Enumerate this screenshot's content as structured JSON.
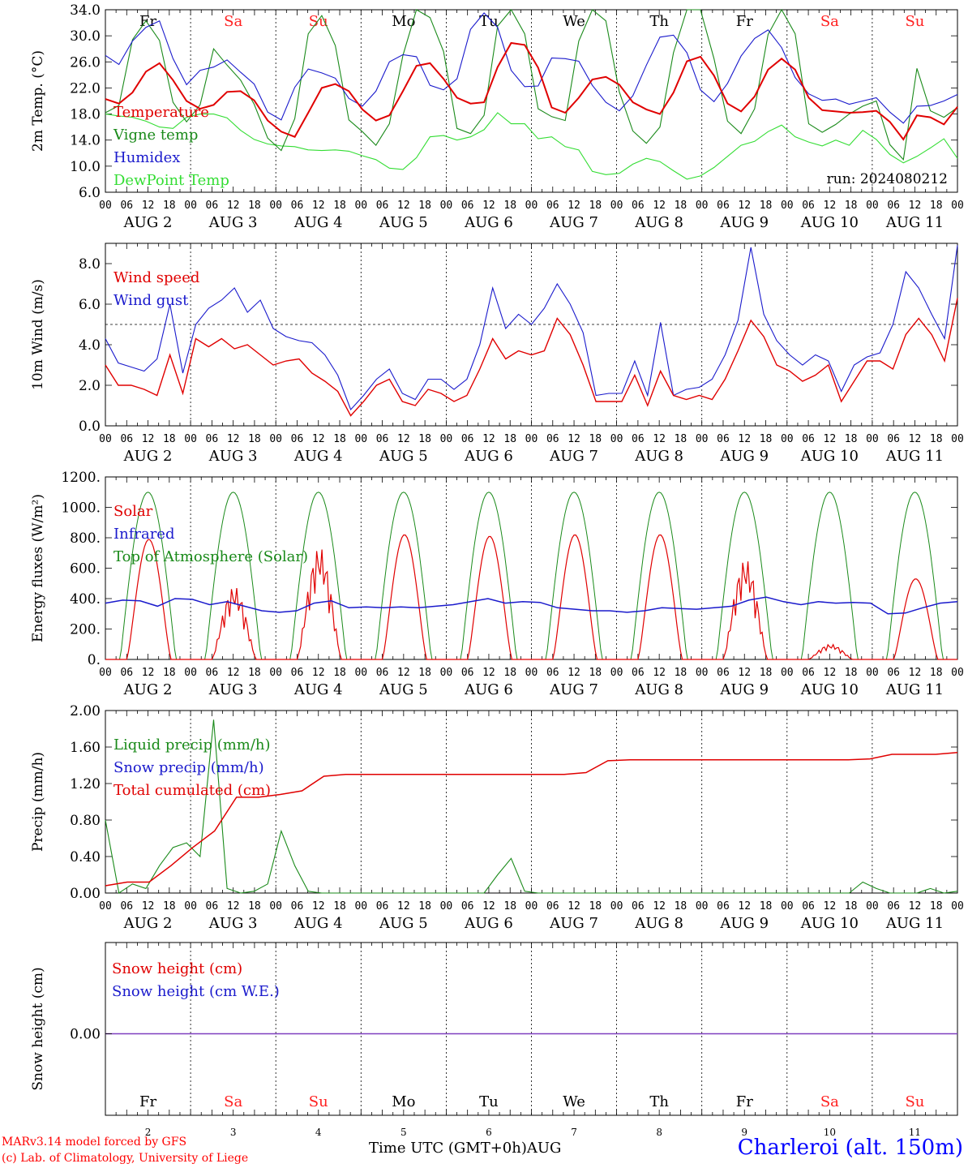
{
  "footer": {
    "credit_line1": "MARv3.14 model forced by GFS",
    "credit_line2": "(c) Lab. of Climatology, University of Liege",
    "x_title": "Time UTC (GMT+0h)AUG",
    "station": "Charleroi (alt. 150m)"
  },
  "colors": {
    "red": "#e00000",
    "green": "#1a8a1a",
    "blue": "#1a1acc",
    "lightgreen": "#33dd33",
    "purple": "#7f3fbf",
    "weekend": "#ff2020"
  },
  "days": [
    {
      "name": "Fr",
      "date": "2",
      "weekend": false
    },
    {
      "name": "Sa",
      "date": "3",
      "weekend": true
    },
    {
      "name": "Su",
      "date": "4",
      "weekend": true
    },
    {
      "name": "Mo",
      "date": "5",
      "weekend": false
    },
    {
      "name": "Tu",
      "date": "6",
      "weekend": false
    },
    {
      "name": "We",
      "date": "7",
      "weekend": false
    },
    {
      "name": "Th",
      "date": "8",
      "weekend": false
    },
    {
      "name": "Fr",
      "date": "9",
      "weekend": false
    },
    {
      "name": "Sa",
      "date": "10",
      "weekend": true
    },
    {
      "name": "Su",
      "date": "11",
      "weekend": true
    }
  ],
  "hour_ticks": [
    "00",
    "06",
    "12",
    "18"
  ],
  "month_label": "AUG",
  "chart_data": [
    {
      "type": "line",
      "ylabel": "2m Temp. (°C)",
      "ylim": [
        6,
        34
      ],
      "yticks": [
        "6.0",
        "10.0",
        "14.0",
        "18.0",
        "22.0",
        "26.0",
        "30.0",
        "34.0"
      ],
      "annotation": "run: 2024080212",
      "series": [
        {
          "name": "Temperature",
          "color": "red",
          "values": [
            20.3,
            19.6,
            21.3,
            24.5,
            25.8,
            23.2,
            20,
            18.8,
            19.4,
            21.4,
            21.5,
            20.1,
            17,
            15.3,
            14.5,
            18.2,
            22,
            22.6,
            21.5,
            18.7,
            17,
            17.8,
            21.5,
            25.4,
            25.8,
            23.4,
            20.5,
            19.6,
            19.8,
            25.2,
            28.9,
            28.6,
            25.1,
            19,
            18.2,
            20.5,
            23.3,
            23.7,
            22.5,
            19.8,
            18.7,
            18,
            21.3,
            26.1,
            26.8,
            23.9,
            19.6,
            18.4,
            20.7,
            24.8,
            26.5,
            24.8,
            20.5,
            18.6,
            18.4,
            18.2,
            18.3,
            18.5,
            16.8,
            14.1,
            17.8,
            17.5,
            16.4,
            19.1
          ]
        },
        {
          "name": "Vigne temp",
          "color": "green",
          "values": [
            18.2,
            19.3,
            29.4,
            32.3,
            29.3,
            19.8,
            16.8,
            19.4,
            28,
            25.5,
            23.2,
            19.5,
            14.3,
            12.4,
            17.3,
            30.3,
            33.1,
            28.5,
            17.1,
            15.3,
            13.2,
            16.5,
            27,
            34,
            32.8,
            27.6,
            15.8,
            15,
            17.8,
            31.5,
            34,
            30.3,
            18.8,
            17.6,
            17,
            29.2,
            34,
            32.3,
            21.4,
            15.4,
            13.5,
            16,
            27.4,
            34,
            34,
            26.5,
            16.9,
            15,
            18.8,
            30.2,
            34,
            30.3,
            16.5,
            15.2,
            16.4,
            18,
            19.2,
            20,
            13.3,
            11,
            25,
            18.5,
            17.5,
            19
          ]
        },
        {
          "name": "Humidex",
          "color": "blue",
          "values": [
            27,
            25.6,
            29.2,
            31.3,
            32.3,
            26.5,
            22.5,
            24.7,
            25.2,
            26.3,
            24.4,
            22.6,
            18.3,
            17.1,
            22.1,
            24.9,
            24.3,
            23.5,
            20.4,
            19.2,
            21.5,
            26,
            27.1,
            26.8,
            22.4,
            21.7,
            23.4,
            31,
            33.5,
            31.3,
            24.7,
            22.2,
            22.3,
            26.6,
            26.5,
            26.1,
            22.4,
            19.8,
            18.5,
            20.8,
            25.5,
            29.8,
            30.1,
            27.4,
            21.7,
            19.9,
            22.7,
            26.9,
            29.6,
            30.9,
            28.2,
            23.6,
            21.1,
            20.1,
            20.3,
            19.5,
            20,
            20.5,
            18.3,
            16.6,
            19.2,
            19.3,
            20,
            21
          ]
        },
        {
          "name": "DewPoint Temp",
          "color": "lightgreen",
          "values": [
            18,
            17.7,
            17.5,
            16.9,
            16,
            15.8,
            17.5,
            18,
            18,
            17.4,
            15.5,
            14.1,
            13.4,
            13.1,
            13,
            12.5,
            12.4,
            12.5,
            12.3,
            11.6,
            11,
            9.7,
            9.5,
            11.3,
            14.5,
            14.7,
            14,
            14.5,
            15.6,
            18.2,
            16.5,
            16.5,
            14.2,
            14.5,
            13,
            12.5,
            9.2,
            8.7,
            8.9,
            10.3,
            11.2,
            10.7,
            9.3,
            8,
            8.5,
            9.8,
            11.5,
            13.2,
            13.8,
            15.3,
            16.3,
            14.5,
            13.7,
            13.1,
            14,
            13.2,
            15.5,
            14.1,
            11.8,
            10.5,
            11.5,
            12.8,
            14.2,
            11.2
          ]
        }
      ]
    },
    {
      "type": "line",
      "ylabel": "10m Wind (m/s)",
      "ylim": [
        0,
        9
      ],
      "yticks": [
        "0.0",
        "2.0",
        "4.0",
        "6.0",
        "8.0"
      ],
      "reference_line": 5,
      "series": [
        {
          "name": "Wind speed",
          "color": "red",
          "values": [
            3,
            2,
            2,
            1.8,
            1.5,
            3.5,
            1.6,
            4.3,
            3.9,
            4.3,
            3.8,
            4,
            3.5,
            3,
            3.2,
            3.3,
            2.6,
            2.2,
            1.7,
            0.5,
            1.2,
            2,
            2.3,
            1.2,
            1,
            1.8,
            1.6,
            1.2,
            1.5,
            2.8,
            4.3,
            3.3,
            3.7,
            3.5,
            3.7,
            5.3,
            4.5,
            3,
            1.2,
            1.2,
            1.2,
            2.5,
            1,
            2.7,
            1.5,
            1.3,
            1.5,
            1.3,
            2.3,
            3.7,
            5.2,
            4.4,
            3,
            2.7,
            2.2,
            2.5,
            3,
            1.2,
            2.2,
            3.2,
            3.2,
            2.8,
            4.5,
            5.3,
            4.5,
            3.2,
            6.3
          ]
        },
        {
          "name": "Wind gust",
          "color": "blue",
          "values": [
            4.3,
            3.1,
            2.9,
            2.7,
            3.3,
            6,
            2.6,
            5,
            5.8,
            6.2,
            6.8,
            5.6,
            6.2,
            4.8,
            4.4,
            4.2,
            4.1,
            3.5,
            2.5,
            0.8,
            1.5,
            2.3,
            2.8,
            1.6,
            1.3,
            2.3,
            2.3,
            1.8,
            2.3,
            4,
            6.8,
            4.8,
            5.5,
            5,
            5.8,
            7,
            6,
            4.6,
            1.5,
            1.6,
            1.6,
            3.2,
            1.5,
            5.1,
            1.5,
            1.8,
            1.9,
            2.3,
            3.5,
            5.2,
            8.8,
            5.5,
            4.2,
            3.5,
            3,
            3.5,
            3.2,
            1.7,
            3,
            3.4,
            3.6,
            5,
            7.6,
            6.8,
            5.5,
            4.3,
            8.9
          ]
        }
      ]
    },
    {
      "type": "line",
      "ylabel": "Energy fluxes (W/m²)",
      "ylim": [
        0,
        1200
      ],
      "yticks": [
        "0.",
        "200.",
        "400.",
        "600.",
        "800.",
        "1000.",
        "1200."
      ],
      "series": [
        {
          "name": "Solar",
          "color": "red",
          "peaks": [
            790,
            480,
            740,
            820,
            810,
            820,
            820,
            660,
            100,
            530
          ],
          "label_hint": "daily solar"
        },
        {
          "name": "Infrared",
          "color": "blue",
          "values": [
            370,
            390,
            385,
            350,
            400,
            395,
            360,
            380,
            350,
            320,
            310,
            320,
            370,
            385,
            340,
            345,
            340,
            345,
            340,
            350,
            360,
            380,
            400,
            370,
            380,
            375,
            340,
            330,
            320,
            320,
            310,
            320,
            340,
            335,
            330,
            340,
            350,
            390,
            410,
            380,
            360,
            380,
            370,
            375,
            370,
            300,
            305,
            340,
            370,
            380
          ]
        },
        {
          "name": "Top of Atmosphere (Solar)",
          "color": "green",
          "peak": 1100
        }
      ]
    },
    {
      "type": "line",
      "ylabel": "Precip (mm/h)",
      "ylim": [
        0,
        2
      ],
      "yticks": [
        "0.00",
        "0.40",
        "0.80",
        "1.20",
        "1.60",
        "2.00"
      ],
      "series": [
        {
          "name": "Liquid precip (mm/h)",
          "color": "green",
          "values": [
            0.8,
            0,
            0.1,
            0.05,
            0.3,
            0.5,
            0.55,
            0.4,
            1.9,
            0.05,
            0,
            0.02,
            0.1,
            0.68,
            0.3,
            0.02,
            0,
            0,
            0,
            0,
            0,
            0,
            0,
            0,
            0,
            0,
            0,
            0,
            0,
            0.2,
            0.38,
            0.02,
            0,
            0,
            0,
            0,
            0,
            0,
            0,
            0,
            0,
            0,
            0,
            0,
            0,
            0,
            0,
            0,
            0,
            0,
            0,
            0,
            0,
            0,
            0,
            0,
            0.12,
            0.05,
            0,
            0,
            0,
            0.05,
            0,
            0.02
          ]
        },
        {
          "name": "Snow precip (mm/h)",
          "color": "blue",
          "values": []
        },
        {
          "name": "Total cumulated (cm)",
          "color": "red",
          "values": [
            0.08,
            0.12,
            0.12,
            0.3,
            0.5,
            0.68,
            1.05,
            1.05,
            1.08,
            1.12,
            1.28,
            1.3,
            1.3,
            1.3,
            1.3,
            1.3,
            1.3,
            1.3,
            1.3,
            1.3,
            1.3,
            1.3,
            1.32,
            1.45,
            1.46,
            1.46,
            1.46,
            1.46,
            1.46,
            1.46,
            1.46,
            1.46,
            1.46,
            1.46,
            1.46,
            1.47,
            1.52,
            1.52,
            1.52,
            1.54
          ]
        }
      ]
    },
    {
      "type": "line",
      "ylabel": "Snow height (cm)",
      "yticks": [
        "0.00"
      ],
      "series": [
        {
          "name": "Snow height (cm)",
          "color": "red",
          "values": [
            0,
            0
          ]
        },
        {
          "name": "Snow height (cm W.E.)",
          "color": "blue",
          "values": [
            0,
            0
          ]
        }
      ]
    }
  ]
}
